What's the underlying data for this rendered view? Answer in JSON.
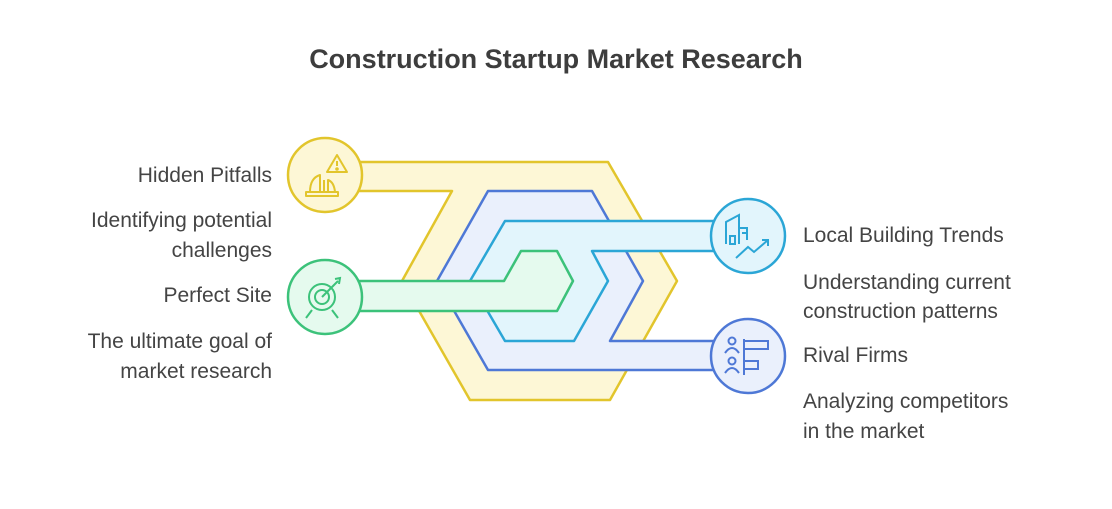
{
  "title": "Construction Startup Market Research",
  "colors": {
    "yellow": {
      "stroke": "#e2c52c",
      "fill": "#fdf7d6"
    },
    "blue": {
      "stroke": "#4e78d6",
      "fill": "#eaf0fc"
    },
    "cyan": {
      "stroke": "#2ba6d6",
      "fill": "#e2f5fc"
    },
    "green": {
      "stroke": "#3cc27a",
      "fill": "#e5faee"
    },
    "text": "#444444"
  },
  "items": [
    {
      "title": "Hidden Pitfalls",
      "description": [
        "Identifying potential",
        "challenges"
      ],
      "icon": "warning-helmet-icon",
      "side": "left",
      "color": "yellow"
    },
    {
      "title": "Perfect Site",
      "description": [
        "The ultimate goal of",
        "market research"
      ],
      "icon": "target-icon",
      "side": "left",
      "color": "green"
    },
    {
      "title": "Local Building Trends",
      "description": [
        "Understanding current",
        "construction patterns"
      ],
      "icon": "buildings-trend-icon",
      "side": "right",
      "color": "cyan"
    },
    {
      "title": "Rival Firms",
      "description": [
        "Analyzing competitors",
        "in the market"
      ],
      "icon": "competitors-icon",
      "side": "right",
      "color": "blue"
    }
  ]
}
